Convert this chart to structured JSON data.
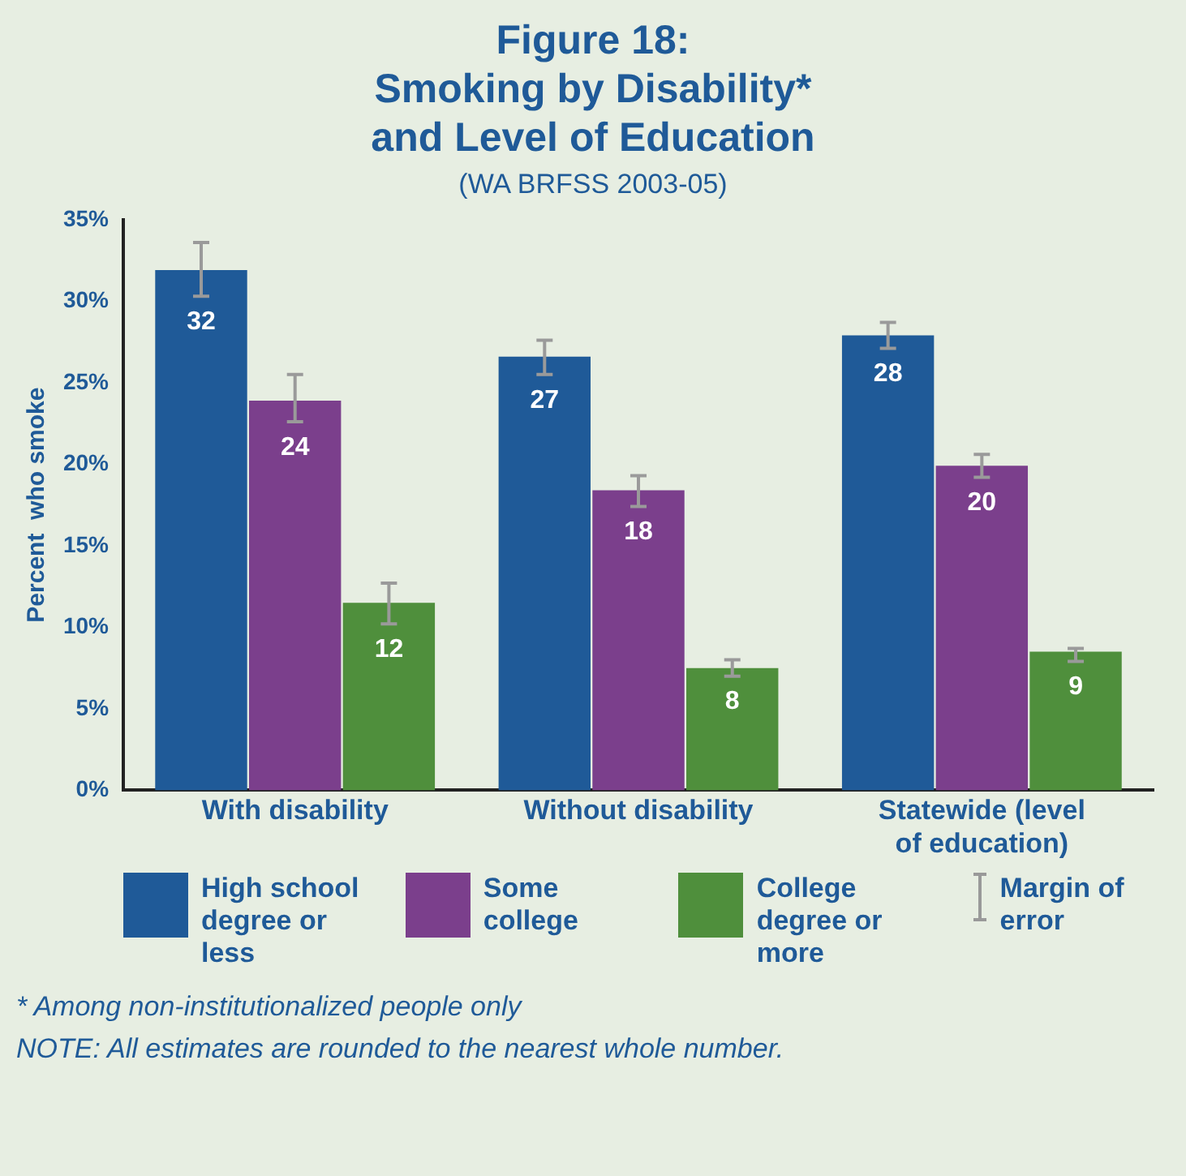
{
  "chart_data": {
    "type": "bar",
    "title": "Figure 18:\nSmoking by Disability*\nand Level of Education",
    "subtitle": "(WA BRFSS 2003-05)",
    "ylabel": "Percent  who smoke",
    "categories": [
      "With disability",
      "Without disability",
      "Statewide (level of education)"
    ],
    "series": [
      {
        "name": "High school degree or less",
        "color": "#1f5a98",
        "values": [
          31.9,
          26.6,
          27.9
        ],
        "errors": [
          [
            30.3,
            33.6
          ],
          [
            25.5,
            27.6
          ],
          [
            27.1,
            28.7
          ]
        ],
        "value_labels": [
          "32",
          "27",
          "28"
        ]
      },
      {
        "name": "Some college",
        "color": "#7b3f8c",
        "values": [
          23.9,
          18.4,
          19.9
        ],
        "errors": [
          [
            22.6,
            25.5
          ],
          [
            17.4,
            19.3
          ],
          [
            19.2,
            20.6
          ]
        ],
        "value_labels": [
          "24",
          "18",
          "20"
        ]
      },
      {
        "name": "College degree or more",
        "color": "#4f8f3c",
        "values": [
          11.5,
          7.5,
          8.5
        ],
        "errors": [
          [
            10.2,
            12.7
          ],
          [
            7.0,
            8.0
          ],
          [
            7.9,
            8.7
          ]
        ],
        "value_labels": [
          "12",
          "8",
          "9"
        ]
      }
    ],
    "ylim": [
      0,
      35
    ],
    "yticks": [
      {
        "value": 0,
        "label": "0%"
      },
      {
        "value": 5,
        "label": "5%"
      },
      {
        "value": 10,
        "label": "10%"
      },
      {
        "value": 15,
        "label": "15%"
      },
      {
        "value": 20,
        "label": "20%"
      },
      {
        "value": 25,
        "label": "25%"
      },
      {
        "value": 30,
        "label": "30%"
      },
      {
        "value": 35,
        "label": "35%"
      }
    ],
    "grid": false,
    "legend": "bottom",
    "annotations": [
      "Margin of error",
      "* Among non-institutionalized people only",
      "NOTE:  All estimates are rounded to the nearest whole number."
    ]
  }
}
